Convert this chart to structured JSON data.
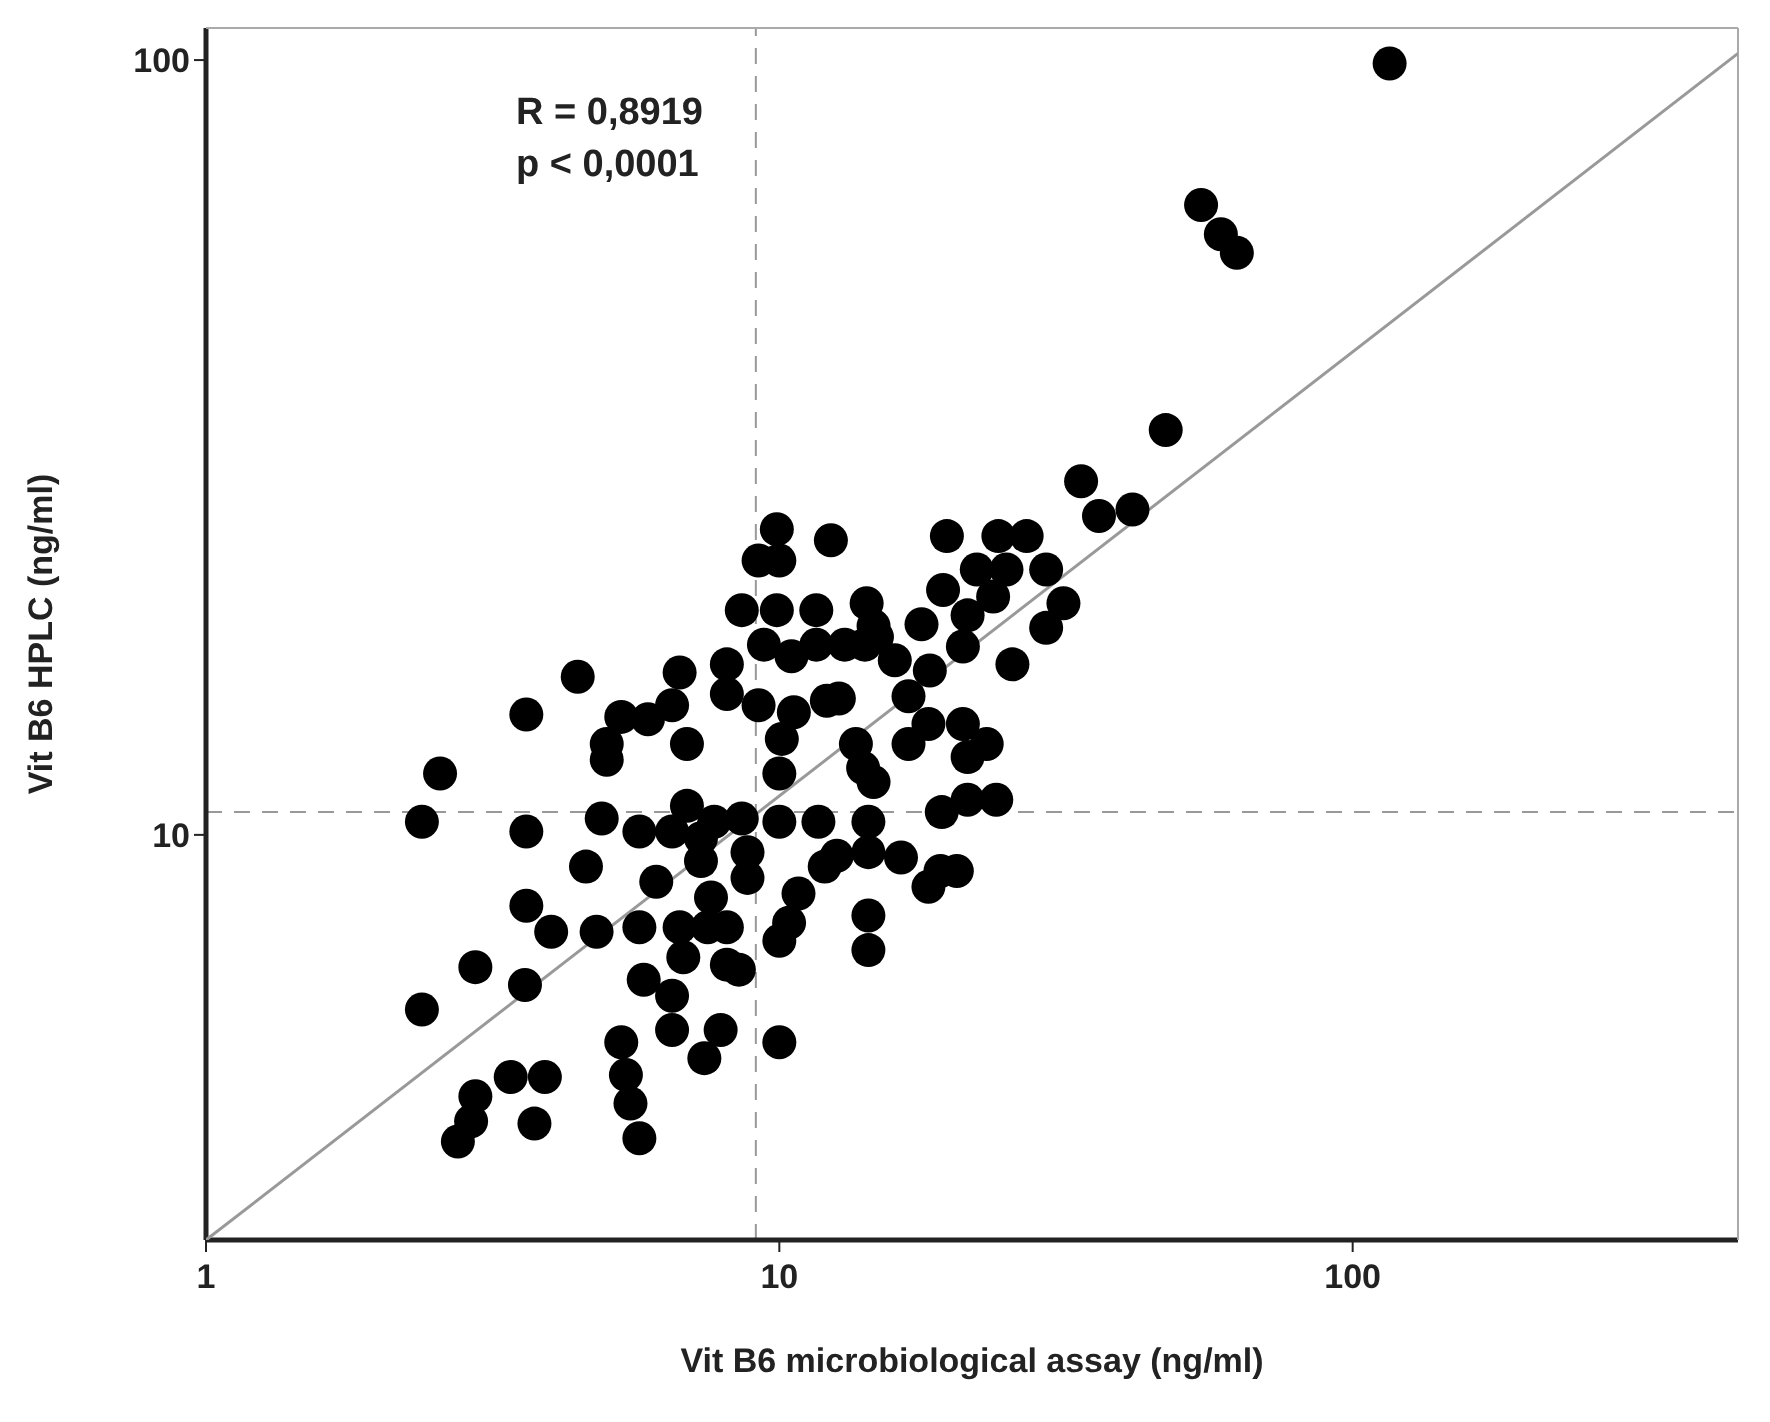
{
  "chart_data": {
    "type": "scatter",
    "xlabel": "Vit B6 microbiological assay (ng/ml)",
    "ylabel": "Vit B6 HPLC (ng/ml)",
    "annotations": [
      "R = 0,8919",
      "p < 0,0001"
    ],
    "log": "xy",
    "grid": false,
    "legend": false,
    "xlim": [
      1,
      470
    ],
    "xticks": [
      1,
      10,
      100
    ],
    "ylim": [
      3,
      110
    ],
    "yticks": [
      10,
      100
    ],
    "ref_lines": [
      {
        "axis": "x",
        "value": 9.1,
        "color": "#999999",
        "line_style": "dashed"
      },
      {
        "axis": "y",
        "value": 10.7,
        "color": "#999999",
        "line_style": "dashed"
      }
    ],
    "series": [
      {
        "marker": "circle",
        "color": "#000000",
        "x": [
          116,
          54.4,
          58.9,
          62.8,
          47.2,
          33.6,
          36.1,
          41.3,
          31.3,
          29.2,
          25.5,
          24.1,
          19.6,
          22.1,
          24.9,
          19.3,
          23.6,
          21.3,
          17.7,
          20.9,
          18.3,
          15.9,
          14.1,
          14.2,
          14.6,
          11.6,
          10.0,
          9.2,
          9.9,
          12.3,
          8.6,
          9.9,
          9.4,
          10.5,
          13.0,
          12.1,
          10.6,
          9.2,
          8.1,
          8.1,
          6.7,
          4.45,
          3.62,
          5.3,
          5.0,
          6.9,
          10.1,
          10.0,
          13.6,
          14.0,
          14.6,
          16.8,
          18.2,
          20.9,
          23.0,
          21.3,
          23.9,
          21.3,
          19.2,
          19.1,
          20.4,
          18.2,
          16.3,
          14.3,
          12.6,
          12.0,
          11.7,
          14.3,
          14.3,
          14.3,
          10.8,
          10.4,
          10.0,
          10.0,
          8.6,
          8.8,
          8.8,
          7.7,
          7.3,
          6.9,
          7.3,
          6.5,
          6.1,
          5.7,
          5.0,
          4.9,
          4.6,
          4.8,
          5.7,
          6.7,
          6.8,
          7.5,
          8.1,
          7.6,
          8.5,
          5.8,
          6.5,
          6.5,
          7.9,
          7.4,
          10.0,
          3.62,
          3.62,
          4.0,
          3.6,
          2.95,
          2.38,
          2.56,
          2.38,
          5.3,
          5.4,
          5.5,
          5.7,
          3.4,
          3.9,
          2.95,
          2.9,
          2.75,
          3.74,
          5.9,
          6.5,
          12.7,
          14.8,
          16.8,
          29.2,
          27.0,
          11.6,
          8.1
        ],
        "values": [
          99,
          65,
          59.6,
          56.4,
          33.3,
          28.6,
          25.8,
          26.3,
          19.9,
          18.5,
          16.6,
          24.3,
          24.3,
          22.0,
          22.0,
          20.7,
          20.3,
          19.2,
          18.7,
          17.5,
          16.3,
          16.8,
          17.6,
          19.9,
          18.6,
          19.5,
          22.6,
          22.6,
          24.8,
          24.0,
          19.5,
          19.5,
          17.6,
          17.0,
          17.6,
          14.9,
          14.4,
          14.7,
          16.6,
          15.2,
          16.2,
          16.0,
          14.3,
          14.2,
          13.1,
          13.1,
          13.3,
          12.0,
          13.1,
          12.2,
          11.7,
          13.1,
          13.9,
          13.9,
          13.1,
          12.6,
          11.1,
          11.1,
          10.7,
          8.98,
          8.98,
          8.57,
          9.35,
          9.5,
          9.4,
          9.1,
          10.4,
          10.4,
          7.87,
          7.1,
          8.4,
          7.7,
          7.3,
          10.4,
          10.5,
          9.5,
          8.8,
          10.4,
          9.9,
          10.9,
          9.25,
          10.1,
          8.7,
          10.1,
          12.5,
          10.5,
          9.1,
          7.5,
          7.6,
          7.6,
          6.95,
          7.6,
          7.6,
          8.3,
          6.7,
          6.5,
          6.2,
          5.6,
          5.6,
          5.15,
          5.4,
          10.1,
          8.1,
          7.5,
          6.4,
          6.75,
          5.95,
          12.0,
          10.4,
          5.4,
          4.9,
          4.5,
          4.06,
          4.87,
          4.87,
          4.6,
          4.27,
          4.02,
          4.24,
          14.1,
          14.7,
          15.0,
          18.0,
          15.1,
          22.0,
          24.3,
          17.6,
          6.8
        ]
      },
      {
        "type": "line",
        "marker": "none",
        "color": "#999999",
        "x": [
          1,
          470
        ],
        "values": [
          3,
          102
        ]
      }
    ]
  }
}
